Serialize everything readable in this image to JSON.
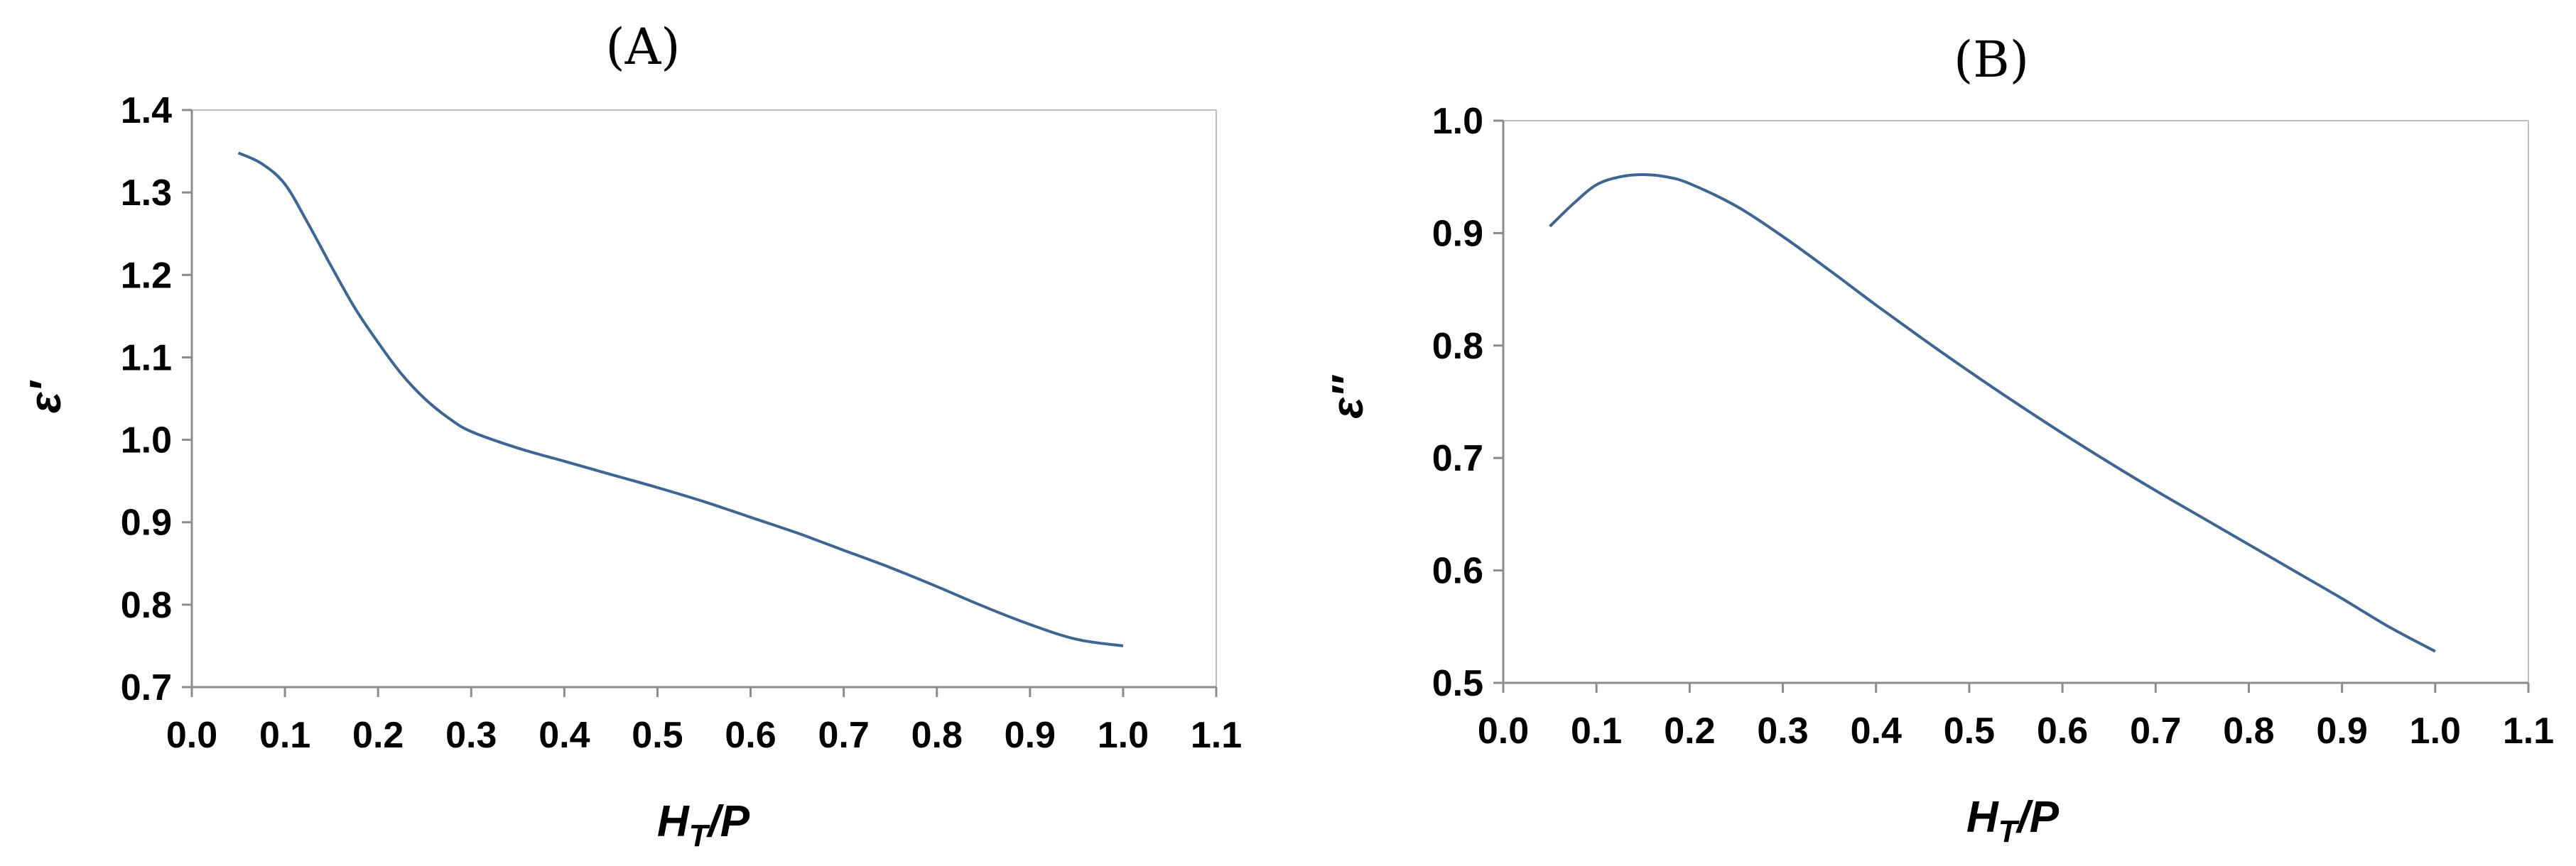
{
  "chart_data": [
    {
      "type": "line",
      "title": "(A)",
      "xlabel": "H_T/P",
      "xlabel_main": "H",
      "xlabel_sub": "T",
      "xlabel_tail": "/P",
      "ylabel": "ε′",
      "xlim": [
        0.0,
        1.1
      ],
      "ylim": [
        0.7,
        1.4
      ],
      "xticks": [
        "0.0",
        "0.1",
        "0.2",
        "0.3",
        "0.4",
        "0.5",
        "0.6",
        "0.7",
        "0.8",
        "0.9",
        "1.0",
        "1.1"
      ],
      "yticks": [
        "0.7",
        "0.8",
        "0.9",
        "1.0",
        "1.1",
        "1.2",
        "1.3",
        "1.4"
      ],
      "grid": false,
      "line_color": "#3e6694",
      "series": [
        {
          "x": [
            0.05,
            0.075,
            0.1,
            0.125,
            0.15,
            0.175,
            0.2,
            0.225,
            0.25,
            0.275,
            0.3,
            0.35,
            0.4,
            0.45,
            0.5,
            0.55,
            0.6,
            0.65,
            0.7,
            0.75,
            0.8,
            0.85,
            0.9,
            0.95,
            1.0
          ],
          "y": [
            1.348,
            1.335,
            1.31,
            1.262,
            1.21,
            1.16,
            1.118,
            1.08,
            1.05,
            1.027,
            1.01,
            0.99,
            0.974,
            0.958,
            0.942,
            0.925,
            0.906,
            0.887,
            0.866,
            0.845,
            0.822,
            0.798,
            0.776,
            0.758,
            0.75
          ]
        }
      ]
    },
    {
      "type": "line",
      "title": "(B)",
      "xlabel": "H_T/P",
      "xlabel_main": "H",
      "xlabel_sub": "T",
      "xlabel_tail": "/P",
      "ylabel": "ε′′",
      "xlim": [
        0.0,
        1.1
      ],
      "ylim": [
        0.5,
        1.0
      ],
      "xticks": [
        "0.0",
        "0.1",
        "0.2",
        "0.3",
        "0.4",
        "0.5",
        "0.6",
        "0.7",
        "0.8",
        "0.9",
        "1.0",
        "1.1"
      ],
      "yticks": [
        "0.5",
        "0.6",
        "0.7",
        "0.8",
        "0.9",
        "1.0"
      ],
      "grid": false,
      "line_color": "#3e6694",
      "series": [
        {
          "x": [
            0.05,
            0.075,
            0.1,
            0.125,
            0.15,
            0.175,
            0.2,
            0.25,
            0.3,
            0.35,
            0.4,
            0.45,
            0.5,
            0.55,
            0.6,
            0.65,
            0.7,
            0.75,
            0.8,
            0.85,
            0.9,
            0.95,
            1.0
          ],
          "y": [
            0.906,
            0.926,
            0.943,
            0.95,
            0.952,
            0.95,
            0.944,
            0.924,
            0.897,
            0.867,
            0.836,
            0.806,
            0.777,
            0.749,
            0.722,
            0.696,
            0.671,
            0.647,
            0.623,
            0.599,
            0.575,
            0.55,
            0.528
          ]
        }
      ]
    }
  ]
}
